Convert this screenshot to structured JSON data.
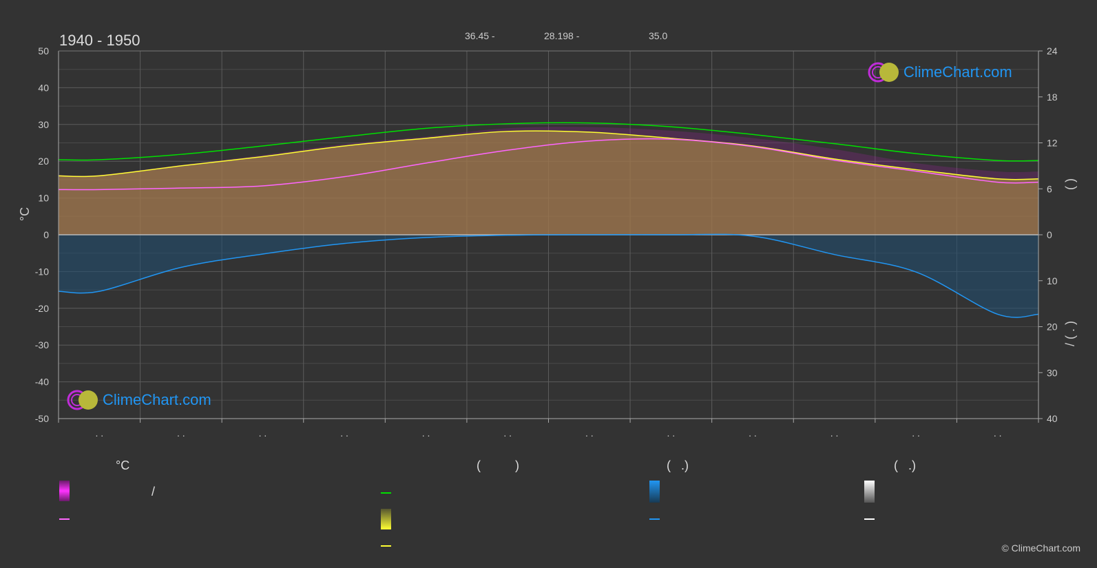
{
  "header": {
    "period": "1940 - 1950",
    "coords": [
      {
        "text": "36.45 -"
      },
      {
        "text": "28.198 -"
      },
      {
        "text": "35.0"
      }
    ]
  },
  "brand": {
    "name": "ClimeChart.com",
    "copyright": "© ClimeChart.com"
  },
  "colors": {
    "background": "#333333",
    "daylight": "#00e000",
    "sunshine": "#ffff33",
    "sunshine_fill": "#9c9c2a",
    "max_temp_fill": "#a11ea1",
    "avg_temp": "#ff66ff",
    "precip": "#2196f3",
    "brand": "#2196f3"
  },
  "legend": {
    "col1_header": "°C",
    "col2_header": "(          )",
    "col3_header": "(   .)",
    "col4_header": "(   .)",
    "col1_range_slash": "/"
  },
  "chart_data": {
    "type": "line",
    "x": [
      1,
      2,
      3,
      4,
      5,
      6,
      7,
      8,
      9,
      10,
      11,
      12
    ],
    "x_tick_labels": [
      ". .",
      ". .",
      ". .",
      ". .",
      ". .",
      ". .",
      ". .",
      ". .",
      ". .",
      ". .",
      ". .",
      ". ."
    ],
    "y_left": {
      "label": "°C",
      "ylim": [
        -50,
        50
      ],
      "ticks": [
        50,
        40,
        30,
        20,
        10,
        0,
        -10,
        -20,
        -30,
        -40,
        -50
      ]
    },
    "y_right_top": {
      "label": "(   )",
      "ylim": [
        0,
        24
      ],
      "ticks": [
        24,
        18,
        12,
        6,
        0
      ]
    },
    "y_right_bottom": {
      "label": "/   (  .  )",
      "ylim": [
        0,
        40
      ],
      "ticks": [
        0,
        10,
        20,
        30,
        40
      ]
    },
    "grid": true,
    "series": [
      {
        "key": "daylight",
        "axis": "hours",
        "values": [
          9.8,
          10.5,
          11.6,
          12.8,
          13.9,
          14.5,
          14.6,
          14.1,
          13.1,
          11.9,
          10.6,
          9.7
        ]
      },
      {
        "key": "sunshine",
        "axis": "hours",
        "values": [
          7.7,
          9.0,
          10.2,
          11.6,
          12.6,
          13.5,
          13.4,
          12.6,
          11.6,
          9.9,
          8.5,
          7.3
        ]
      },
      {
        "key": "avg_temp",
        "axis": "temp",
        "values": [
          12.3,
          12.7,
          13.3,
          15.8,
          19.5,
          23.0,
          25.5,
          26.0,
          24.0,
          20.3,
          17.3,
          14.3
        ]
      },
      {
        "key": "max_temp",
        "axis": "temp",
        "values": [
          16.3,
          19.0,
          21.7,
          24.7,
          26.7,
          29.0,
          29.3,
          28.3,
          26.3,
          23.3,
          19.5,
          17.2
        ]
      },
      {
        "key": "precip",
        "axis": "mm",
        "values": [
          12.3,
          7.1,
          4.2,
          1.9,
          0.6,
          0.1,
          0.0,
          0.0,
          0.3,
          4.3,
          8.1,
          17.3
        ]
      }
    ]
  }
}
